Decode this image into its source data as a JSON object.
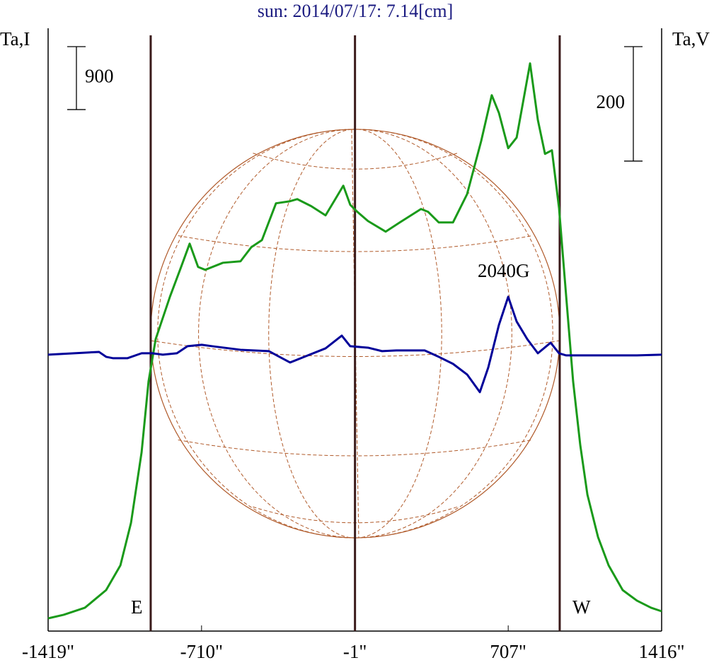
{
  "chart_data": {
    "type": "line",
    "title": "sun: 2014/07/17: 7.14[cm]",
    "y_label": "Ta,I",
    "y2_label": "Ta,V",
    "annotation": "2040G",
    "xlim": [
      -1419,
      1416
    ],
    "xticks": [
      {
        "value": -1419,
        "label": "-1419\""
      },
      {
        "value": -710,
        "label": "-710\""
      },
      {
        "value": -1,
        "label": "-1\""
      },
      {
        "value": 707,
        "label": "707\""
      },
      {
        "value": 1416,
        "label": "1416\""
      }
    ],
    "ylim": [
      0,
      8600
    ],
    "y2lim": [
      -483,
      568
    ],
    "scale_bars": [
      {
        "value": 900,
        "axis": "y"
      },
      {
        "value": 200,
        "axis": "y2"
      }
    ],
    "markers": [
      {
        "label": "E",
        "x": -945
      },
      {
        "x": -1
      },
      {
        "label": "W",
        "x": 945
      }
    ],
    "series": [
      {
        "color": "#1a9a1a",
        "x": [
          -1419,
          -1347,
          -1249,
          -1151,
          -1085,
          -1036,
          -987,
          -955,
          -922,
          -856,
          -807,
          -765,
          -726,
          -693,
          -611,
          -530,
          -480,
          -431,
          -366,
          -301,
          -268,
          -203,
          -137,
          -88,
          -55,
          -23,
          10,
          59,
          141,
          206,
          304,
          337,
          386,
          452,
          517,
          582,
          631,
          664,
          707,
          746,
          808,
          844,
          877,
          909,
          942,
          975,
          1007,
          1040,
          1073,
          1122,
          1171,
          1236,
          1302,
          1367,
          1416
        ],
        "values": [
          182,
          233,
          334,
          586,
          940,
          1547,
          2558,
          3569,
          4175,
          4782,
          5186,
          5540,
          5207,
          5166,
          5267,
          5288,
          5490,
          5591,
          6117,
          6147,
          6177,
          6076,
          5945,
          6197,
          6369,
          6096,
          5995,
          5864,
          5712,
          5844,
          6036,
          5995,
          5844,
          5844,
          6248,
          7006,
          7663,
          7411,
          6905,
          7057,
          8118,
          7310,
          6824,
          6875,
          6046,
          4782,
          3569,
          2659,
          1951,
          1345,
          940,
          586,
          435,
          334,
          283
        ]
      },
      {
        "color": "#000099",
        "axis": "y2",
        "x": [
          -1419,
          -1184,
          -1151,
          -1118,
          -1053,
          -987,
          -938,
          -889,
          -824,
          -775,
          -709,
          -660,
          -530,
          -399,
          -350,
          -301,
          -235,
          -137,
          -62,
          -23,
          59,
          124,
          190,
          321,
          386,
          452,
          517,
          576,
          615,
          664,
          707,
          746,
          795,
          844,
          903,
          942,
          975,
          1138,
          1302,
          1416
        ],
        "values": [
          0,
          4.9,
          -3.7,
          -6.2,
          -6.2,
          2.5,
          2.5,
          0,
          2.5,
          14.8,
          17.3,
          14.8,
          8.6,
          6.2,
          -3.7,
          -13.6,
          -3.7,
          11.1,
          33.3,
          14.8,
          12.3,
          6.2,
          7.4,
          7.4,
          -3.7,
          -16.0,
          -34.6,
          -65.4,
          -22.2,
          51.9,
          101.2,
          58.0,
          27.2,
          2.5,
          21.0,
          2.5,
          -1.2,
          -1.2,
          -1.2,
          0
        ]
      }
    ]
  }
}
